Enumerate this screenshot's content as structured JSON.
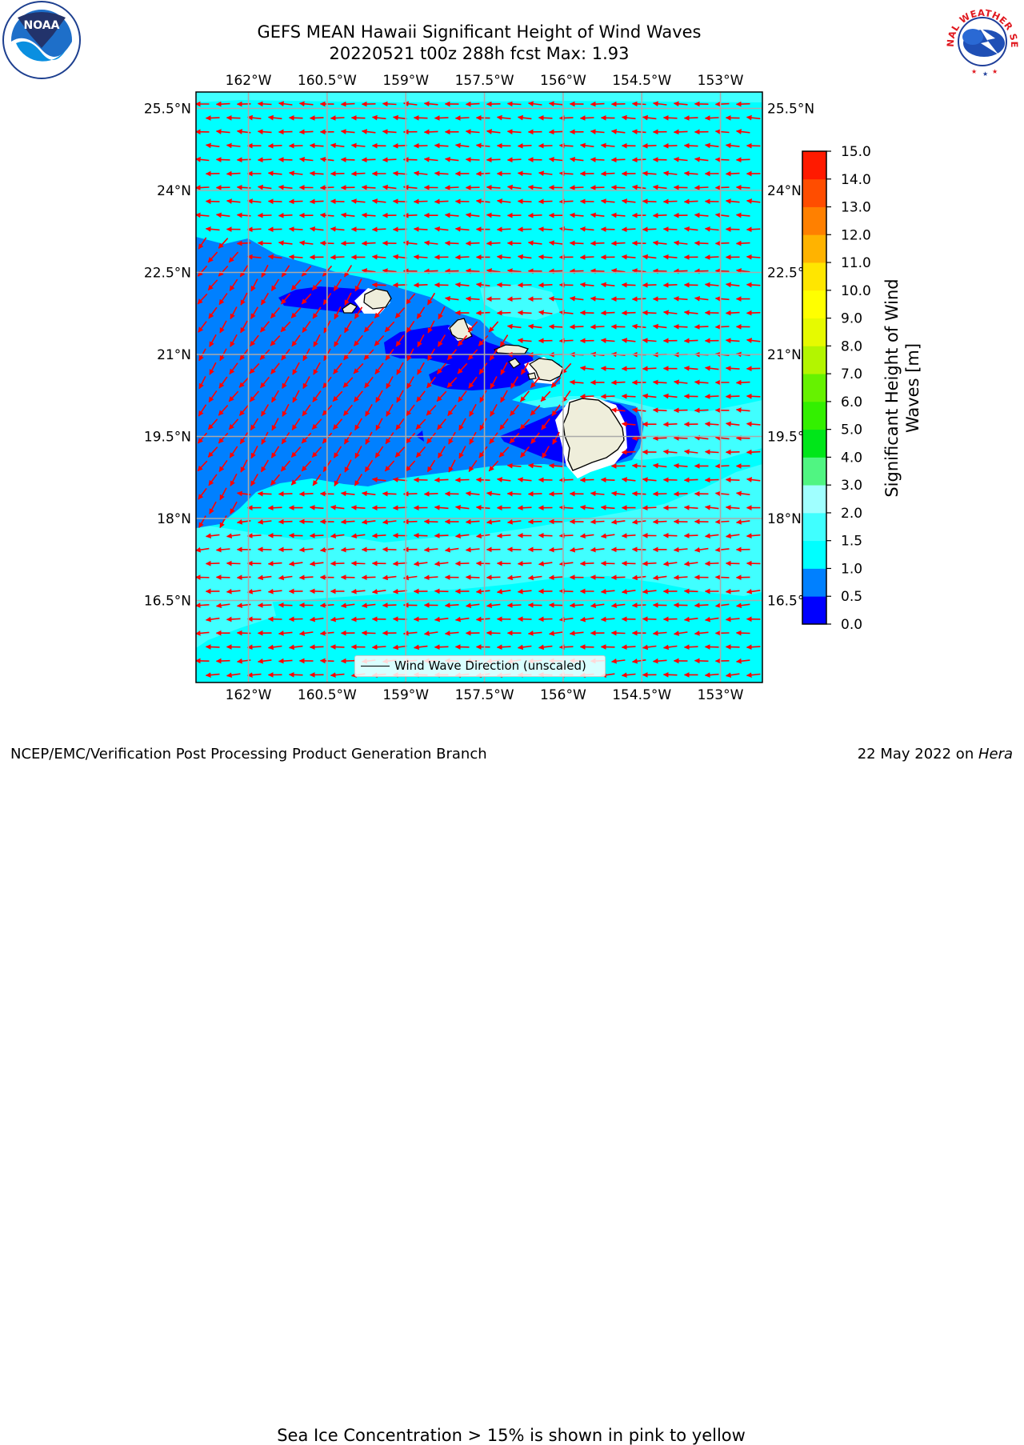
{
  "title": {
    "line1": "GEFS MEAN Hawaii Significant Height of Wind Waves",
    "line2": "20220521 t00z 288h fcst   Max: 1.93"
  },
  "logos": {
    "left": {
      "name": "noaa-logo",
      "text": "NOAA"
    },
    "right": {
      "name": "nws-logo",
      "text": "NATIONAL WEATHER SERVICE"
    }
  },
  "map": {
    "lon_range": [
      -163.0,
      -152.2
    ],
    "lat_range": [
      15.0,
      25.8
    ],
    "lon_ticks": [
      {
        "value": -162.0,
        "label": "162°W"
      },
      {
        "value": -160.5,
        "label": "160.5°W"
      },
      {
        "value": -159.0,
        "label": "159°W"
      },
      {
        "value": -157.5,
        "label": "157.5°W"
      },
      {
        "value": -156.0,
        "label": "156°W"
      },
      {
        "value": -154.5,
        "label": "154.5°W"
      },
      {
        "value": -153.0,
        "label": "153°W"
      }
    ],
    "lat_ticks": [
      {
        "value": 25.5,
        "label": "25.5°N"
      },
      {
        "value": 24.0,
        "label": "24°N"
      },
      {
        "value": 22.5,
        "label": "22.5°N"
      },
      {
        "value": 21.0,
        "label": "21°N"
      },
      {
        "value": 19.5,
        "label": "19.5°N"
      },
      {
        "value": 18.0,
        "label": "18°N"
      },
      {
        "value": 16.5,
        "label": "16.5°N"
      }
    ],
    "grid": true,
    "colors": {
      "ocean_base": "#00ffff",
      "band_0_0_5": "#0000ff",
      "band_0_5_1_0": "#0080ff",
      "band_1_5_2_0": "#40ffff",
      "band_2_0_3_0": "#a0ffff",
      "land": "#efeedb",
      "arrows": "#ff0000",
      "grid": "#aaaaaa"
    },
    "legend": {
      "label": "Wind Wave Direction (unscaled)",
      "placement": "lower-center"
    }
  },
  "colorbar": {
    "label": "Significant Height of Wind\nWaves [m]",
    "label_line1": "Significant Height of Wind",
    "label_line2": "Waves [m]",
    "bounds": [
      0.0,
      0.5,
      1.0,
      1.5,
      2.0,
      3.0,
      4.0,
      5.0,
      6.0,
      7.0,
      8.0,
      9.0,
      10.0,
      11.0,
      12.0,
      13.0,
      14.0,
      15.0
    ],
    "tick_labels": [
      "0.0",
      "0.5",
      "1.0",
      "1.5",
      "2.0",
      "3.0",
      "4.0",
      "5.0",
      "6.0",
      "7.0",
      "8.0",
      "9.0",
      "10.0",
      "11.0",
      "12.0",
      "13.0",
      "14.0",
      "15.0"
    ],
    "colors": [
      "#0000ff",
      "#0080ff",
      "#00ffff",
      "#40ffff",
      "#a0ffff",
      "#50f582",
      "#00e619",
      "#33f000",
      "#66f200",
      "#b3f500",
      "#e6fa00",
      "#ffff00",
      "#ffe600",
      "#ffb300",
      "#ff8000",
      "#ff4d00",
      "#ff1a00"
    ]
  },
  "note": "Sea Ice Concentration > 15% is shown in pink to yellow",
  "footer": {
    "left": "NCEP/EMC/Verification Post Processing Product Generation Branch",
    "right_prefix": "22 May 2022 on ",
    "right_host": "Hera"
  }
}
